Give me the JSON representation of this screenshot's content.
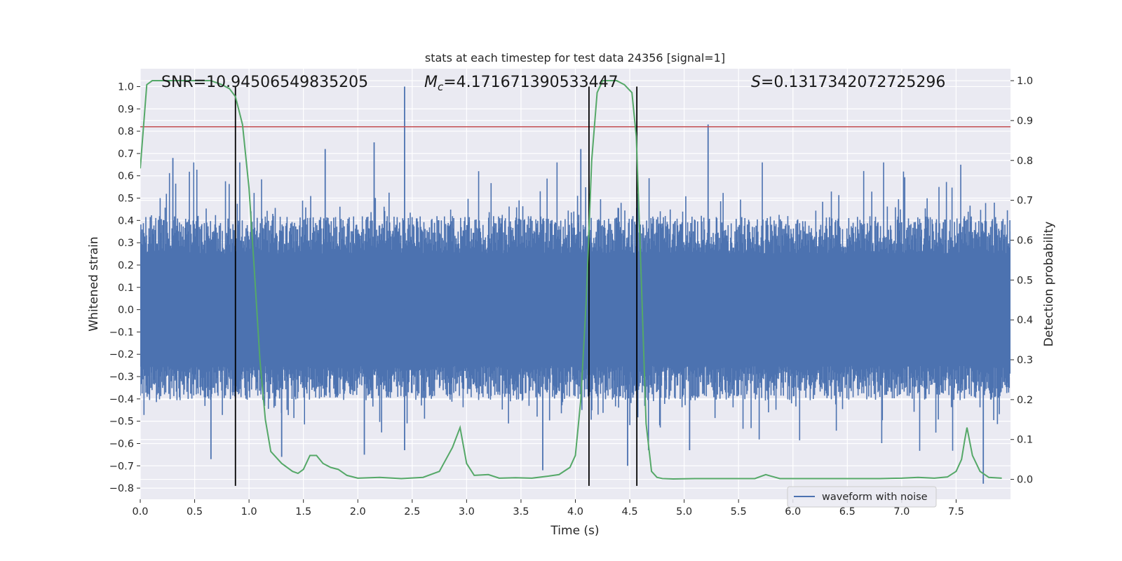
{
  "chart_data": {
    "type": "line",
    "title": "stats at each timestep for test data 24356 [signal=1]",
    "xlabel": "Time (s)",
    "ylabel_left": "Whitened strain",
    "ylabel_right": "Detection probability",
    "xlim": [
      0.0,
      8.0
    ],
    "ylim_left": [
      -0.85,
      1.08
    ],
    "ylim_right": [
      -0.05,
      1.03
    ],
    "x_ticks": [
      0.0,
      0.5,
      1.0,
      1.5,
      2.0,
      2.5,
      3.0,
      3.5,
      4.0,
      4.5,
      5.0,
      5.5,
      6.0,
      6.5,
      7.0,
      7.5
    ],
    "x_tick_labels": [
      "0.0",
      "0.5",
      "1.0",
      "1.5",
      "2.0",
      "2.5",
      "3.0",
      "3.5",
      "4.0",
      "4.5",
      "5.0",
      "5.5",
      "6.0",
      "6.5",
      "7.0",
      "7.5"
    ],
    "y_left_ticks": [
      -0.8,
      -0.7,
      -0.6,
      -0.5,
      -0.4,
      -0.3,
      -0.2,
      -0.1,
      0.0,
      0.1,
      0.2,
      0.3,
      0.4,
      0.5,
      0.6,
      0.7,
      0.8,
      0.9,
      1.0
    ],
    "y_left_tick_labels": [
      "−0.8",
      "−0.7",
      "−0.6",
      "−0.5",
      "−0.4",
      "−0.3",
      "−0.2",
      "−0.1",
      "0.0",
      "0.1",
      "0.2",
      "0.3",
      "0.4",
      "0.5",
      "0.6",
      "0.7",
      "0.8",
      "0.9",
      "1.0"
    ],
    "y_right_ticks": [
      0.0,
      0.1,
      0.2,
      0.3,
      0.4,
      0.5,
      0.6,
      0.7,
      0.8,
      0.9,
      1.0
    ],
    "y_right_tick_labels": [
      "0.0",
      "0.1",
      "0.2",
      "0.3",
      "0.4",
      "0.5",
      "0.6",
      "0.7",
      "0.8",
      "0.9",
      "1.0"
    ],
    "grid": true,
    "legend_position": "lower-right",
    "annotations": {
      "snr": "SNR=10.94506549835205",
      "mc_symbol": "M",
      "mc_sub": "c",
      "mc_value": "=4.171671390533447",
      "s_symbol": "S",
      "s_value": "=0.1317342072725296"
    },
    "threshold": {
      "value": 0.82,
      "color": "#c44e52"
    },
    "vertical_lines": {
      "x": [
        0.875,
        4.125,
        4.565
      ],
      "y_range": [
        -0.79,
        1.0
      ],
      "color": "#000000"
    },
    "waveform": {
      "name": "waveform with noise",
      "color": "#4c72b0",
      "duration": 8.0,
      "samples": 1400,
      "envelope_typical": 0.3,
      "spikes": [
        {
          "x": 2.43,
          "y": 1.0
        },
        {
          "x": 5.22,
          "y": 0.83
        },
        {
          "x": 2.15,
          "y": 0.75
        },
        {
          "x": 1.7,
          "y": 0.72
        },
        {
          "x": 4.05,
          "y": 0.72
        },
        {
          "x": 0.3,
          "y": 0.68
        },
        {
          "x": 2.06,
          "y": -0.65
        },
        {
          "x": 2.43,
          "y": -0.63
        },
        {
          "x": 3.7,
          "y": -0.72
        },
        {
          "x": 4.48,
          "y": -0.7
        },
        {
          "x": 5.05,
          "y": -0.63
        },
        {
          "x": 7.75,
          "y": -0.78
        },
        {
          "x": 0.65,
          "y": -0.67
        },
        {
          "x": 1.3,
          "y": -0.66
        }
      ]
    },
    "detection_probability": {
      "color": "#55a868",
      "x": [
        0.0,
        0.06,
        0.11,
        0.2,
        0.35,
        0.5,
        0.65,
        0.75,
        0.82,
        0.875,
        0.94,
        1.0,
        1.05,
        1.1,
        1.15,
        1.2,
        1.3,
        1.4,
        1.45,
        1.5,
        1.56,
        1.62,
        1.68,
        1.75,
        1.82,
        1.9,
        2.0,
        2.2,
        2.4,
        2.6,
        2.75,
        2.87,
        2.94,
        3.0,
        3.07,
        3.2,
        3.3,
        3.45,
        3.6,
        3.75,
        3.85,
        3.95,
        4.0,
        4.05,
        4.1,
        4.15,
        4.2,
        4.25,
        4.3,
        4.38,
        4.45,
        4.52,
        4.56,
        4.6,
        4.65,
        4.7,
        4.75,
        4.8,
        4.9,
        5.1,
        5.4,
        5.65,
        5.75,
        5.8,
        5.88,
        6.0,
        6.3,
        6.8,
        7.0,
        7.15,
        7.3,
        7.42,
        7.5,
        7.55,
        7.58,
        7.6,
        7.65,
        7.72,
        7.8,
        7.92
      ],
      "y": [
        0.78,
        0.99,
        1.0,
        1.0,
        1.0,
        1.0,
        1.0,
        0.99,
        0.98,
        0.96,
        0.89,
        0.73,
        0.52,
        0.3,
        0.15,
        0.07,
        0.04,
        0.02,
        0.015,
        0.025,
        0.06,
        0.06,
        0.04,
        0.03,
        0.025,
        0.01,
        0.003,
        0.005,
        0.002,
        0.005,
        0.02,
        0.08,
        0.13,
        0.04,
        0.01,
        0.012,
        0.003,
        0.004,
        0.003,
        0.008,
        0.012,
        0.03,
        0.06,
        0.2,
        0.45,
        0.8,
        0.97,
        1.0,
        1.0,
        1.0,
        0.99,
        0.97,
        0.86,
        0.55,
        0.14,
        0.02,
        0.005,
        0.002,
        0.001,
        0.002,
        0.002,
        0.002,
        0.012,
        0.008,
        0.002,
        0.002,
        0.002,
        0.002,
        0.003,
        0.005,
        0.003,
        0.006,
        0.02,
        0.05,
        0.1,
        0.13,
        0.06,
        0.02,
        0.005,
        0.003
      ]
    }
  }
}
